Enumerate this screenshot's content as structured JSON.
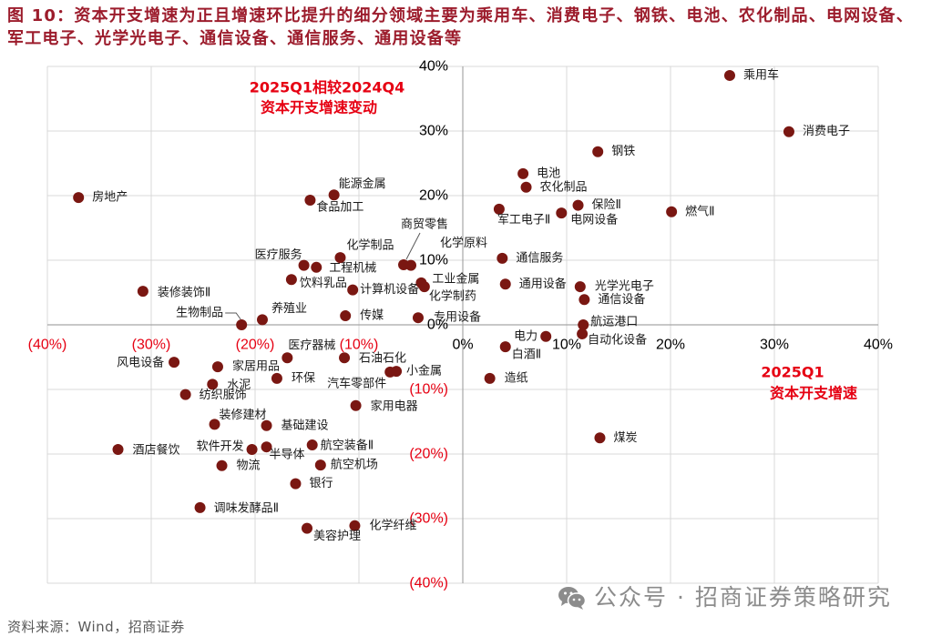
{
  "header": {
    "figure_no": "图 10：",
    "title_line1": "资本开支增速为正且增速环比提升的细分领域主要为乘用车、消费电子、钢铁、电池、农化制品、电网设备、",
    "title_line2": "军工电子、光学光电子、通信设备、通信服务、通用设备等"
  },
  "chart_data": {
    "type": "scatter",
    "xlabel": [
      "2025Q1",
      "资本开支增速"
    ],
    "ylabel": [
      "2025Q1相较2024Q4",
      "资本开支增速变动"
    ],
    "xlim": [
      -40,
      40
    ],
    "ylim": [
      -40,
      40
    ],
    "grid": true,
    "x_ticks": [
      {
        "value": -40,
        "label": "(40%)"
      },
      {
        "value": -30,
        "label": "(30%)"
      },
      {
        "value": -20,
        "label": "(20%)"
      },
      {
        "value": -10,
        "label": "(10%)"
      },
      {
        "value": 0,
        "label": "0%"
      },
      {
        "value": 10,
        "label": "10%"
      },
      {
        "value": 20,
        "label": "20%"
      },
      {
        "value": 30,
        "label": "30%"
      },
      {
        "value": 40,
        "label": "40%"
      }
    ],
    "y_ticks": [
      {
        "value": 40,
        "label": "40%"
      },
      {
        "value": 30,
        "label": "30%"
      },
      {
        "value": 20,
        "label": "20%"
      },
      {
        "value": 10,
        "label": "10%"
      },
      {
        "value": 0,
        "label": "0%"
      },
      {
        "value": -10,
        "label": "(10%)"
      },
      {
        "value": -20,
        "label": "(20%)"
      },
      {
        "value": -30,
        "label": "(30%)"
      },
      {
        "value": -40,
        "label": "(40%)"
      }
    ],
    "points": [
      {
        "label": "乘用车",
        "x": 25.7,
        "y": 38.6
      },
      {
        "label": "消费电子",
        "x": 31.4,
        "y": 29.9
      },
      {
        "label": "钢铁",
        "x": 13.0,
        "y": 26.8
      },
      {
        "label": "电池",
        "x": 5.8,
        "y": 23.4
      },
      {
        "label": "农化制品",
        "x": 6.1,
        "y": 21.3
      },
      {
        "label": "保险Ⅱ",
        "x": 11.1,
        "y": 18.5
      },
      {
        "label": "燃气Ⅱ",
        "x": 20.1,
        "y": 17.5
      },
      {
        "label": "电网设备",
        "x": 9.5,
        "y": 17.3
      },
      {
        "label": "军工电子Ⅱ",
        "x": 3.5,
        "y": 17.9
      },
      {
        "label": "房地产",
        "x": -37.0,
        "y": 19.7
      },
      {
        "label": "能源金属",
        "x": -12.4,
        "y": 20.1
      },
      {
        "label": "食品加工",
        "x": -14.7,
        "y": 19.3
      },
      {
        "label": "商贸零售",
        "x": -5.7,
        "y": 9.3
      },
      {
        "label": "化学原料",
        "x": -5.0,
        "y": 9.2
      },
      {
        "label": "化学制品",
        "x": -11.8,
        "y": 10.4
      },
      {
        "label": "医疗服务",
        "x": -15.3,
        "y": 9.2
      },
      {
        "label": "工程机械",
        "x": -14.1,
        "y": 8.9
      },
      {
        "label": "饮料乳品",
        "x": -16.5,
        "y": 7.0
      },
      {
        "label": "计算机设备",
        "x": -10.6,
        "y": 5.4
      },
      {
        "label": "工业金属",
        "x": -4.0,
        "y": 6.5
      },
      {
        "label": "化学制药",
        "x": -3.7,
        "y": 5.9
      },
      {
        "label": "通信服务",
        "x": 3.8,
        "y": 10.3
      },
      {
        "label": "通用设备",
        "x": 4.1,
        "y": 6.3
      },
      {
        "label": "光学光电子",
        "x": 11.3,
        "y": 5.9
      },
      {
        "label": "通信设备",
        "x": 11.7,
        "y": 3.9
      },
      {
        "label": "装修装饰Ⅱ",
        "x": -30.8,
        "y": 5.2
      },
      {
        "label": "养殖业",
        "x": -19.3,
        "y": 0.8
      },
      {
        "label": "生物制品",
        "x": -21.3,
        "y": 0.0
      },
      {
        "label": "传媒",
        "x": -11.3,
        "y": 1.4
      },
      {
        "label": "专用设备",
        "x": -4.3,
        "y": 1.1
      },
      {
        "label": "航运港口",
        "x": 11.6,
        "y": 0.0
      },
      {
        "label": "电力",
        "x": 8.0,
        "y": -1.8
      },
      {
        "label": "自动化设备",
        "x": 11.5,
        "y": -1.4
      },
      {
        "label": "白酒Ⅱ",
        "x": 4.1,
        "y": -3.4
      },
      {
        "label": "造纸",
        "x": 2.6,
        "y": -8.3
      },
      {
        "label": "医疗器械",
        "x": -16.9,
        "y": -5.1
      },
      {
        "label": "石油石化",
        "x": -11.4,
        "y": -5.1
      },
      {
        "label": "汽车零部件",
        "x": -7.0,
        "y": -7.3
      },
      {
        "label": "小金属",
        "x": -6.4,
        "y": -7.2
      },
      {
        "label": "风电设备",
        "x": -27.8,
        "y": -5.8
      },
      {
        "label": "家居用品",
        "x": -23.6,
        "y": -6.5
      },
      {
        "label": "环保",
        "x": -17.9,
        "y": -8.3
      },
      {
        "label": "水泥",
        "x": -24.1,
        "y": -9.2
      },
      {
        "label": "纺织服饰",
        "x": -26.7,
        "y": -10.8
      },
      {
        "label": "家用电器",
        "x": -10.3,
        "y": -12.5
      },
      {
        "label": "装修建材",
        "x": -23.9,
        "y": -15.4
      },
      {
        "label": "基础建设",
        "x": -18.9,
        "y": -15.6
      },
      {
        "label": "煤炭",
        "x": 13.2,
        "y": -17.5
      },
      {
        "label": "酒店餐饮",
        "x": -33.2,
        "y": -19.3
      },
      {
        "label": "软件开发",
        "x": -20.3,
        "y": -19.3
      },
      {
        "label": "半导体",
        "x": -18.9,
        "y": -18.9
      },
      {
        "label": "航空装备Ⅱ",
        "x": -14.5,
        "y": -18.6
      },
      {
        "label": "物流",
        "x": -23.2,
        "y": -21.8
      },
      {
        "label": "航空机场",
        "x": -13.7,
        "y": -21.7
      },
      {
        "label": "银行",
        "x": -16.1,
        "y": -24.6
      },
      {
        "label": "调味发酵品Ⅱ",
        "x": -25.3,
        "y": -28.3
      },
      {
        "label": "美容护理",
        "x": -15.0,
        "y": -31.5
      },
      {
        "label": "化学纤维",
        "x": -10.4,
        "y": -31.1
      }
    ]
  },
  "footer": {
    "source": "资料来源：Wind，招商证券"
  },
  "watermark": {
    "text": "公众号 · 招商证券策略研究",
    "icon": "wechat-icon"
  },
  "colors": {
    "title": "#9C1C2C",
    "negative_tick": "#E60012",
    "positive_tick": "#000000",
    "annotation": "#E60012",
    "dot": "#7A1712",
    "grid": "#D9D9D9",
    "axis": "#A6A6A6",
    "watermark": "#8C8C8C",
    "source": "#595959"
  }
}
